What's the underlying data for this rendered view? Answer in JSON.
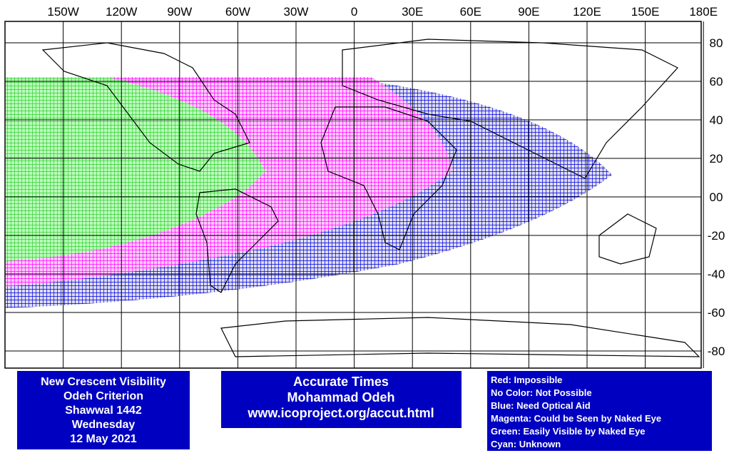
{
  "map": {
    "lon_labels": [
      {
        "value": -150,
        "label": "150W"
      },
      {
        "value": -120,
        "label": "120W"
      },
      {
        "value": -90,
        "label": "90W"
      },
      {
        "value": -60,
        "label": "60W"
      },
      {
        "value": -30,
        "label": "30W"
      },
      0,
      {
        "value": 30,
        "label": "30E"
      },
      {
        "value": 60,
        "label": "60E"
      },
      {
        "value": 90,
        "label": "90E"
      },
      {
        "value": 120,
        "label": "120E"
      },
      {
        "value": 150,
        "label": "150E"
      },
      {
        "value": 180,
        "label": "180E"
      }
    ],
    "lat_labels": [
      80,
      60,
      40,
      20,
      {
        "value": 0,
        "label": "00"
      },
      -20,
      -40,
      -60,
      -80
    ]
  },
  "info_left": [
    "New Crescent Visibility",
    "Odeh Criterion",
    "Shawwal 1442",
    "Wednesday",
    "12 May 2021"
  ],
  "info_center": [
    "Accurate Times",
    "Mohammad Odeh",
    "www.icoproject.org/accut.html"
  ],
  "legend": [
    "Red: Impossible",
    "No Color: Not Possible",
    "Blue: Need Optical Aid",
    "Magenta: Could be Seen by Naked Eye",
    "Green: Easily Visible by Naked Eye",
    "Cyan: Unknown"
  ]
}
